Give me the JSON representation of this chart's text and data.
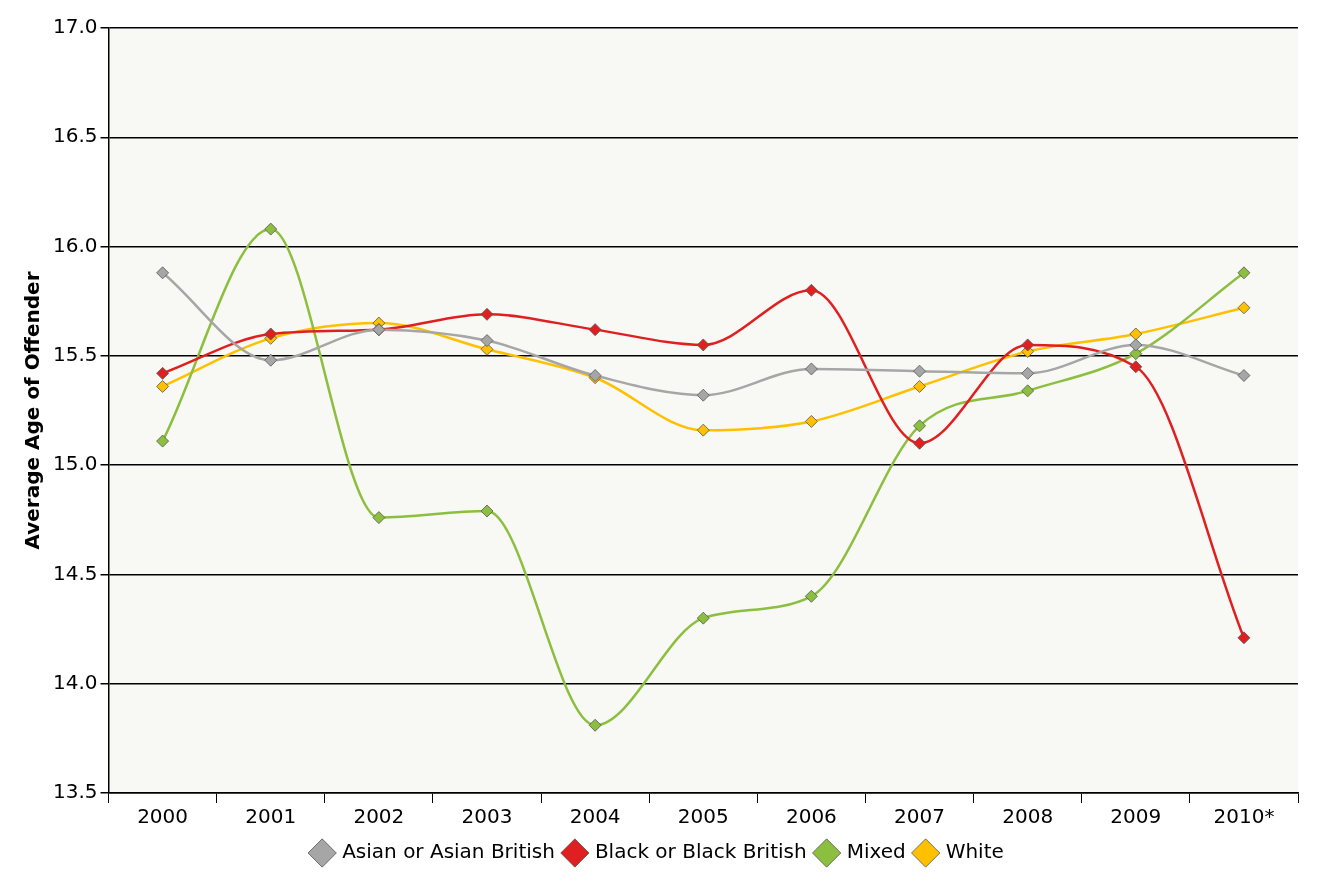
{
  "chart_data": {
    "type": "line",
    "ylabel": "Average Age of Offender",
    "categories": [
      "2000",
      "2001",
      "2002",
      "2003",
      "2004",
      "2005",
      "2006",
      "2007",
      "2008",
      "2009",
      "2010*"
    ],
    "series": [
      {
        "name": "Asian or Asian British",
        "color": "#a6a6a6",
        "values": [
          15.88,
          15.48,
          15.62,
          15.57,
          15.41,
          15.32,
          15.44,
          15.43,
          15.42,
          15.55,
          15.41
        ]
      },
      {
        "name": "Black or Black British",
        "color": "#e02020",
        "values": [
          15.42,
          15.6,
          15.62,
          15.69,
          15.62,
          15.55,
          15.8,
          15.1,
          15.55,
          15.45,
          14.21
        ]
      },
      {
        "name": "Mixed",
        "color": "#8cbf3f",
        "values": [
          15.11,
          16.08,
          14.76,
          14.79,
          13.81,
          14.3,
          14.4,
          15.18,
          15.34,
          15.51,
          15.88
        ]
      },
      {
        "name": "White",
        "color": "#ffc000",
        "values": [
          15.36,
          15.58,
          15.65,
          15.53,
          15.4,
          15.16,
          15.2,
          15.36,
          15.52,
          15.6,
          15.72
        ]
      }
    ],
    "ylim": [
      13.5,
      17
    ],
    "yticks": [
      13.5,
      {
        "value": 14,
        "label": "14.0"
      },
      14.5,
      {
        "value": 15,
        "label": "15.0"
      },
      15.5,
      {
        "value": 16,
        "label": "16.0"
      },
      16.5,
      {
        "value": 17,
        "label": "17.0"
      }
    ],
    "grid": "y",
    "legend": "bottom",
    "marker": "diamond",
    "line_style": "solid"
  }
}
